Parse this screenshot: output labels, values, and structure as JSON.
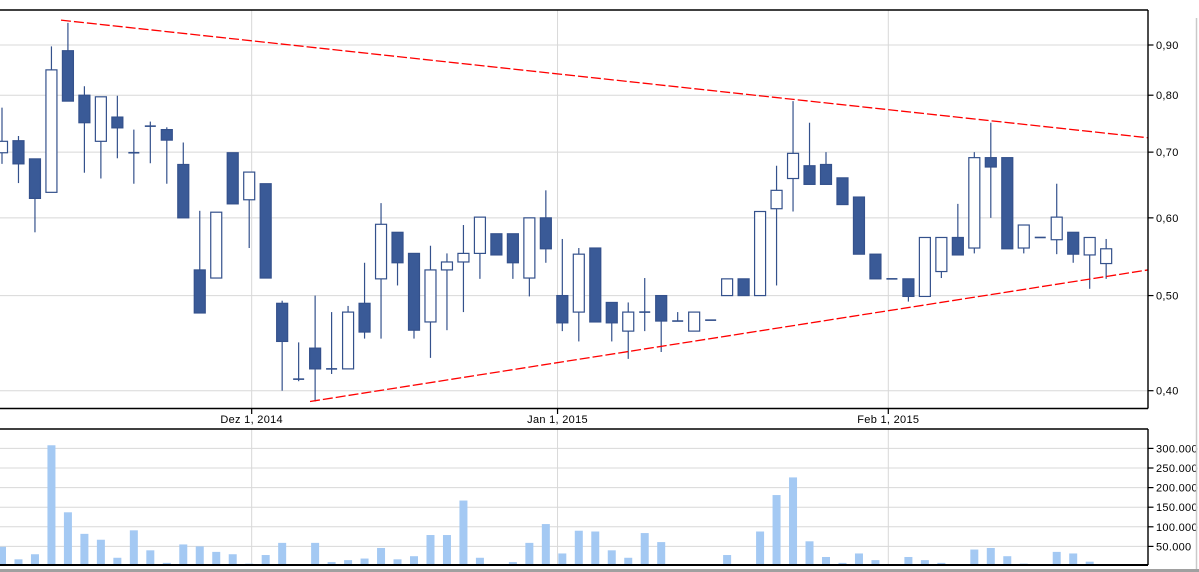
{
  "colors": {
    "background": "#FFFFFF",
    "bearish_fill": "#3A5A97",
    "bullish_fill": "#FFFFFF",
    "candle_border": "#34518C",
    "volume_bar": "#A4C9F3",
    "grid": "#D8D8D8",
    "axis": "#000000",
    "trendline": "#FF0000",
    "divider": "#C9C9C9",
    "bottom_band": "#A0A0A0"
  },
  "chart_data": {
    "type": "candlestick",
    "legend": false,
    "grid": true,
    "price_axis": {
      "side": "right",
      "scale": "log",
      "tick_labels": [
        "0,90",
        "0,80",
        "0,70",
        "0,60",
        "0,50",
        "0,40"
      ],
      "tick_values": [
        0.9,
        0.8,
        0.7,
        0.6,
        0.5,
        0.4
      ]
    },
    "volume_axis": {
      "side": "right",
      "tick_labels": [
        "300.000",
        "250.000",
        "200.000",
        "150.000",
        "100.000",
        "50.000"
      ],
      "tick_values": [
        300000,
        250000,
        200000,
        150000,
        100000,
        50000
      ]
    },
    "x_axis": {
      "tick_labels": [
        "Dez 1, 2014",
        "Jan 1, 2015",
        "Feb 1, 2015"
      ],
      "tick_candle_index": [
        15.15,
        33.71,
        53.78
      ]
    },
    "candle_columns": [
      "open",
      "high",
      "low",
      "close",
      "volume"
    ],
    "candles": [
      [
        0.699,
        0.777,
        0.681,
        0.718,
        49000
      ],
      [
        0.719,
        0.727,
        0.651,
        0.681,
        17000
      ],
      [
        0.689,
        0.689,
        0.58,
        0.628,
        30000
      ],
      [
        0.637,
        0.897,
        0.637,
        0.849,
        308000
      ],
      [
        0.888,
        0.948,
        0.789,
        0.789,
        137000
      ],
      [
        0.8,
        0.817,
        0.667,
        0.75,
        82000
      ],
      [
        0.718,
        0.797,
        0.658,
        0.797,
        67000
      ],
      [
        0.76,
        0.799,
        0.69,
        0.741,
        21000
      ],
      [
        0.699,
        0.738,
        0.65,
        0.699,
        91000
      ],
      [
        0.744,
        0.752,
        0.682,
        0.744,
        40000
      ],
      [
        0.738,
        0.742,
        0.65,
        0.72,
        8000
      ],
      [
        0.68,
        0.716,
        0.6,
        0.6,
        55000
      ],
      [
        0.531,
        0.61,
        0.48,
        0.48,
        50000
      ],
      [
        0.521,
        0.608,
        0.521,
        0.608,
        36000
      ],
      [
        0.699,
        0.699,
        0.62,
        0.62,
        30000
      ],
      [
        0.626,
        0.668,
        0.559,
        0.668,
        6000
      ],
      [
        0.65,
        0.65,
        0.521,
        0.521,
        28000
      ],
      [
        0.491,
        0.494,
        0.4,
        0.449,
        59000
      ],
      [
        0.411,
        0.448,
        0.409,
        0.411,
        4000
      ],
      [
        0.442,
        0.5,
        0.39,
        0.421,
        59000
      ],
      [
        0.421,
        0.481,
        0.416,
        0.421,
        10000
      ],
      [
        0.421,
        0.488,
        0.421,
        0.481,
        15000
      ],
      [
        0.491,
        0.54,
        0.452,
        0.459,
        19000
      ],
      [
        0.52,
        0.621,
        0.452,
        0.591,
        46000
      ],
      [
        0.58,
        0.58,
        0.512,
        0.54,
        17000
      ],
      [
        0.552,
        0.552,
        0.452,
        0.461,
        25000
      ],
      [
        0.47,
        0.562,
        0.432,
        0.531,
        79000
      ],
      [
        0.531,
        0.552,
        0.461,
        0.541,
        79000
      ],
      [
        0.541,
        0.59,
        0.481,
        0.552,
        167000
      ],
      [
        0.552,
        0.601,
        0.52,
        0.601,
        21000
      ],
      [
        0.578,
        0.578,
        0.55,
        0.55,
        2000
      ],
      [
        0.578,
        0.578,
        0.52,
        0.54,
        10000
      ],
      [
        0.521,
        0.6,
        0.499,
        0.6,
        59000
      ],
      [
        0.6,
        0.64,
        0.54,
        0.558,
        107000
      ],
      [
        0.5,
        0.571,
        0.46,
        0.469,
        32000
      ],
      [
        0.481,
        0.559,
        0.449,
        0.551,
        90000
      ],
      [
        0.559,
        0.559,
        0.47,
        0.47,
        88000
      ],
      [
        0.492,
        0.492,
        0.449,
        0.469,
        40000
      ],
      [
        0.46,
        0.492,
        0.431,
        0.481,
        21000
      ],
      [
        0.481,
        0.521,
        0.46,
        0.481,
        84000
      ],
      [
        0.5,
        0.5,
        0.438,
        0.471,
        61000
      ],
      [
        0.471,
        0.481,
        0.471,
        0.471,
        2000
      ],
      [
        0.46,
        0.481,
        0.46,
        0.481,
        2000
      ],
      [
        0.472,
        0.472,
        0.472,
        0.472,
        0
      ],
      [
        0.5,
        0.52,
        0.5,
        0.52,
        28000
      ],
      [
        0.52,
        0.52,
        0.5,
        0.5,
        2000
      ],
      [
        0.5,
        0.609,
        0.5,
        0.609,
        88000
      ],
      [
        0.613,
        0.678,
        0.512,
        0.64,
        181000
      ],
      [
        0.658,
        0.789,
        0.609,
        0.698,
        226000
      ],
      [
        0.678,
        0.75,
        0.649,
        0.649,
        63000
      ],
      [
        0.68,
        0.7,
        0.649,
        0.649,
        23000
      ],
      [
        0.659,
        0.659,
        0.619,
        0.619,
        8000
      ],
      [
        0.63,
        0.63,
        0.551,
        0.551,
        32000
      ],
      [
        0.551,
        0.551,
        0.52,
        0.52,
        15000
      ],
      [
        0.52,
        0.52,
        0.52,
        0.52,
        0
      ],
      [
        0.52,
        0.52,
        0.493,
        0.499,
        23000
      ],
      [
        0.499,
        0.573,
        0.499,
        0.573,
        15000
      ],
      [
        0.529,
        0.573,
        0.521,
        0.573,
        8000
      ],
      [
        0.573,
        0.62,
        0.55,
        0.55,
        4000
      ],
      [
        0.559,
        0.7,
        0.552,
        0.691,
        42000
      ],
      [
        0.691,
        0.75,
        0.6,
        0.676,
        46000
      ],
      [
        0.691,
        0.691,
        0.558,
        0.558,
        25000
      ],
      [
        0.559,
        0.59,
        0.552,
        0.59,
        6000
      ],
      [
        0.573,
        0.573,
        0.573,
        0.573,
        0
      ],
      [
        0.57,
        0.65,
        0.551,
        0.601,
        36000
      ],
      [
        0.58,
        0.58,
        0.54,
        0.551,
        32000
      ],
      [
        0.55,
        0.573,
        0.508,
        0.573,
        11000
      ],
      [
        0.539,
        0.571,
        0.52,
        0.558,
        4000
      ]
    ],
    "trendlines": [
      {
        "name": "upper-resistance",
        "color": "#FF0000",
        "start": {
          "candle_index": 3.58,
          "price": 0.954
        },
        "end": {
          "candle_index": 69.54,
          "price": 0.724
        }
      },
      {
        "name": "lower-support",
        "color": "#FF0000",
        "start": {
          "candle_index": 18.69,
          "price": 0.39
        },
        "end": {
          "candle_index": 69.54,
          "price": 0.531
        }
      }
    ]
  }
}
